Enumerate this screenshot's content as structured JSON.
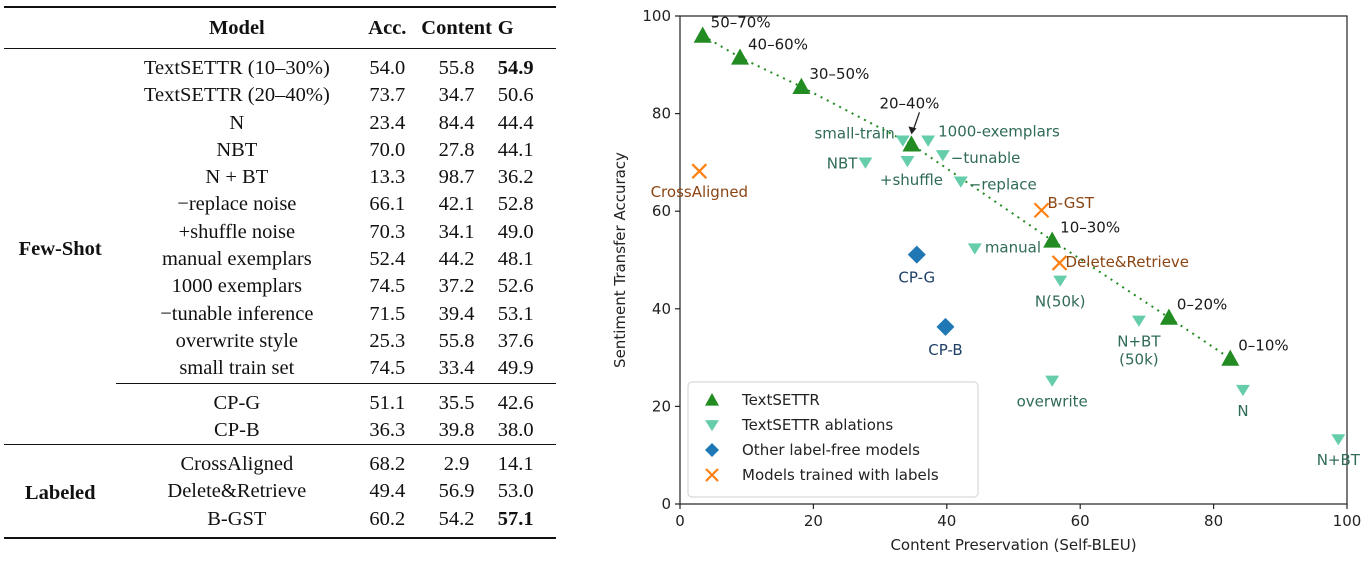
{
  "table": {
    "headers": {
      "group": "",
      "model": "Model",
      "acc": "Acc.",
      "content": "Content",
      "g": "G"
    },
    "sections": [
      {
        "group": "Few-Shot",
        "blocks": [
          [
            {
              "model": "TextSETTR (10–30%)",
              "acc": "54.0",
              "content": "55.8",
              "g": "54.9",
              "g_bold": true
            },
            {
              "model": "TextSETTR (20–40%)",
              "acc": "73.7",
              "content": "34.7",
              "g": "50.6"
            },
            {
              "model": "N",
              "acc": "23.4",
              "content": "84.4",
              "g": "44.4"
            },
            {
              "model": "NBT",
              "acc": "70.0",
              "content": "27.8",
              "g": "44.1"
            },
            {
              "model": "N + BT",
              "acc": "13.3",
              "content": "98.7",
              "g": "36.2"
            },
            {
              "model": "−replace noise",
              "acc": "66.1",
              "content": "42.1",
              "g": "52.8"
            },
            {
              "model": "+shuffle noise",
              "acc": "70.3",
              "content": "34.1",
              "g": "49.0"
            },
            {
              "model": "manual exemplars",
              "acc": "52.4",
              "content": "44.2",
              "g": "48.1"
            },
            {
              "model": "1000 exemplars",
              "acc": "74.5",
              "content": "37.2",
              "g": "52.6"
            },
            {
              "model": "−tunable inference",
              "acc": "71.5",
              "content": "39.4",
              "g": "53.1"
            },
            {
              "model": "overwrite style",
              "acc": "25.3",
              "content": "55.8",
              "g": "37.6"
            },
            {
              "model": "small train set",
              "acc": "74.5",
              "content": "33.4",
              "g": "49.9"
            }
          ],
          [
            {
              "model": "CP-G",
              "acc": "51.1",
              "content": "35.5",
              "g": "42.6"
            },
            {
              "model": "CP-B",
              "acc": "36.3",
              "content": "39.8",
              "g": "38.0"
            }
          ]
        ]
      },
      {
        "group": "Labeled",
        "blocks": [
          [
            {
              "model": "CrossAligned",
              "acc": "68.2",
              "content": "2.9",
              "g": "14.1"
            },
            {
              "model": "Delete&Retrieve",
              "acc": "49.4",
              "content": "56.9",
              "g": "53.0"
            },
            {
              "model": "B-GST",
              "acc": "60.2",
              "content": "54.2",
              "g": "57.1",
              "g_bold": true
            }
          ]
        ]
      }
    ]
  },
  "chart_data": {
    "type": "scatter",
    "title": "",
    "xlabel": "Content Preservation (Self-BLEU)",
    "ylabel": "Sentiment Transfer Accuracy",
    "xlim": [
      0,
      100
    ],
    "ylim": [
      0,
      100
    ],
    "xticks": [
      0,
      20,
      40,
      60,
      80,
      100
    ],
    "yticks": [
      0,
      20,
      40,
      60,
      80,
      100
    ],
    "grid": false,
    "legend_position": "bottom-left",
    "colors": {
      "textsettr": "#228b22",
      "ablations": "#66cdaa",
      "label_free": "#1f77b4",
      "labeled": "#ff7f0e",
      "ablation_text": "#2f6b55",
      "label_free_text": "#1d3f66",
      "labeled_text": "#8b4513",
      "textsettr_text": "#1a1a1a"
    },
    "series": [
      {
        "name": "TextSETTR",
        "marker": "triangle-up",
        "color_key": "textsettr",
        "connected": "dotted",
        "points": [
          {
            "label": "50–70%",
            "x": 3.4,
            "y": 96.0
          },
          {
            "label": "40–60%",
            "x": 9.0,
            "y": 91.5
          },
          {
            "label": "30–50%",
            "x": 18.2,
            "y": 85.5
          },
          {
            "label": "20–40%",
            "x": 34.7,
            "y": 73.7,
            "arrow": true
          },
          {
            "label": "10–30%",
            "x": 55.8,
            "y": 54.0
          },
          {
            "label": "0–20%",
            "x": 73.3,
            "y": 38.2
          },
          {
            "label": "0–10%",
            "x": 82.5,
            "y": 29.8
          }
        ]
      },
      {
        "name": "TextSETTR ablations",
        "marker": "triangle-down",
        "color_key": "ablations",
        "points": [
          {
            "label": "small-train",
            "x": 33.4,
            "y": 74.5
          },
          {
            "label": "1000-exemplars",
            "x": 37.2,
            "y": 74.5
          },
          {
            "label": "NBT",
            "x": 27.8,
            "y": 70.0
          },
          {
            "label": "+shuffle",
            "x": 34.1,
            "y": 70.3
          },
          {
            "label": "−tunable",
            "x": 39.4,
            "y": 71.5
          },
          {
            "label": "−replace",
            "x": 42.1,
            "y": 66.1
          },
          {
            "label": "manual",
            "x": 44.2,
            "y": 52.4
          },
          {
            "label": "N(50k)",
            "x": 57.0,
            "y": 45.8
          },
          {
            "label": "N+BT\n(50k)",
            "x": 68.8,
            "y": 37.6
          },
          {
            "label": "overwrite",
            "x": 55.8,
            "y": 25.3
          },
          {
            "label": "N",
            "x": 84.4,
            "y": 23.4
          },
          {
            "label": "N+BT",
            "x": 98.7,
            "y": 13.3
          }
        ]
      },
      {
        "name": "Other label-free models",
        "marker": "diamond",
        "color_key": "label_free",
        "points": [
          {
            "label": "CP-G",
            "x": 35.5,
            "y": 51.1
          },
          {
            "label": "CP-B",
            "x": 39.8,
            "y": 36.3
          }
        ]
      },
      {
        "name": "Models trained with labels",
        "marker": "x",
        "color_key": "labeled",
        "points": [
          {
            "label": "CrossAligned",
            "x": 2.9,
            "y": 68.2
          },
          {
            "label": "B-GST",
            "x": 54.2,
            "y": 60.2
          },
          {
            "label": "Delete&Retrieve",
            "x": 56.9,
            "y": 49.4
          }
        ]
      }
    ]
  }
}
